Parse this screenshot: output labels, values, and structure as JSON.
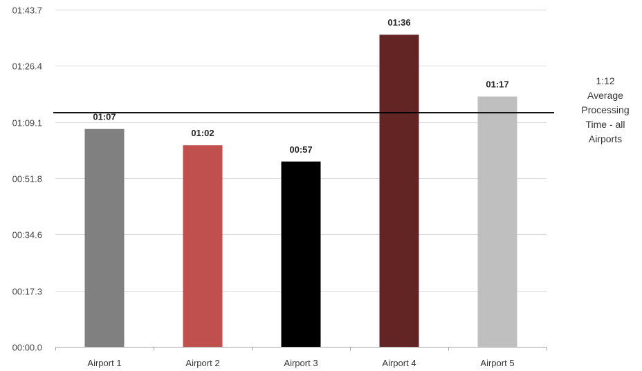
{
  "chart_data": {
    "type": "bar",
    "categories": [
      "Airport 1",
      "Airport 2",
      "Airport 3",
      "Airport 4",
      "Airport 5"
    ],
    "values": [
      67,
      62,
      57,
      96,
      77
    ],
    "value_unit": "seconds",
    "data_labels": [
      "01:07",
      "01:02",
      "00:57",
      "01:36",
      "01:17"
    ],
    "colors": [
      "#808080",
      "#c0504d",
      "#000000",
      "#632523",
      "#bfbfbf"
    ],
    "y_ticks": [
      0,
      17.3,
      34.6,
      51.8,
      69.1,
      86.4,
      103.7
    ],
    "y_tick_labels": [
      "00:00.0",
      "00:17.3",
      "00:34.6",
      "00:51.8",
      "01:09.1",
      "01:26.4",
      "01:43.7"
    ],
    "ylim": [
      0,
      103.7
    ],
    "grid": true,
    "reference_line": {
      "value": 72,
      "label_lines": [
        "1:12",
        "Average",
        "Processing",
        "Time - all",
        "Airports"
      ]
    },
    "title": "",
    "xlabel": "",
    "ylabel": ""
  }
}
